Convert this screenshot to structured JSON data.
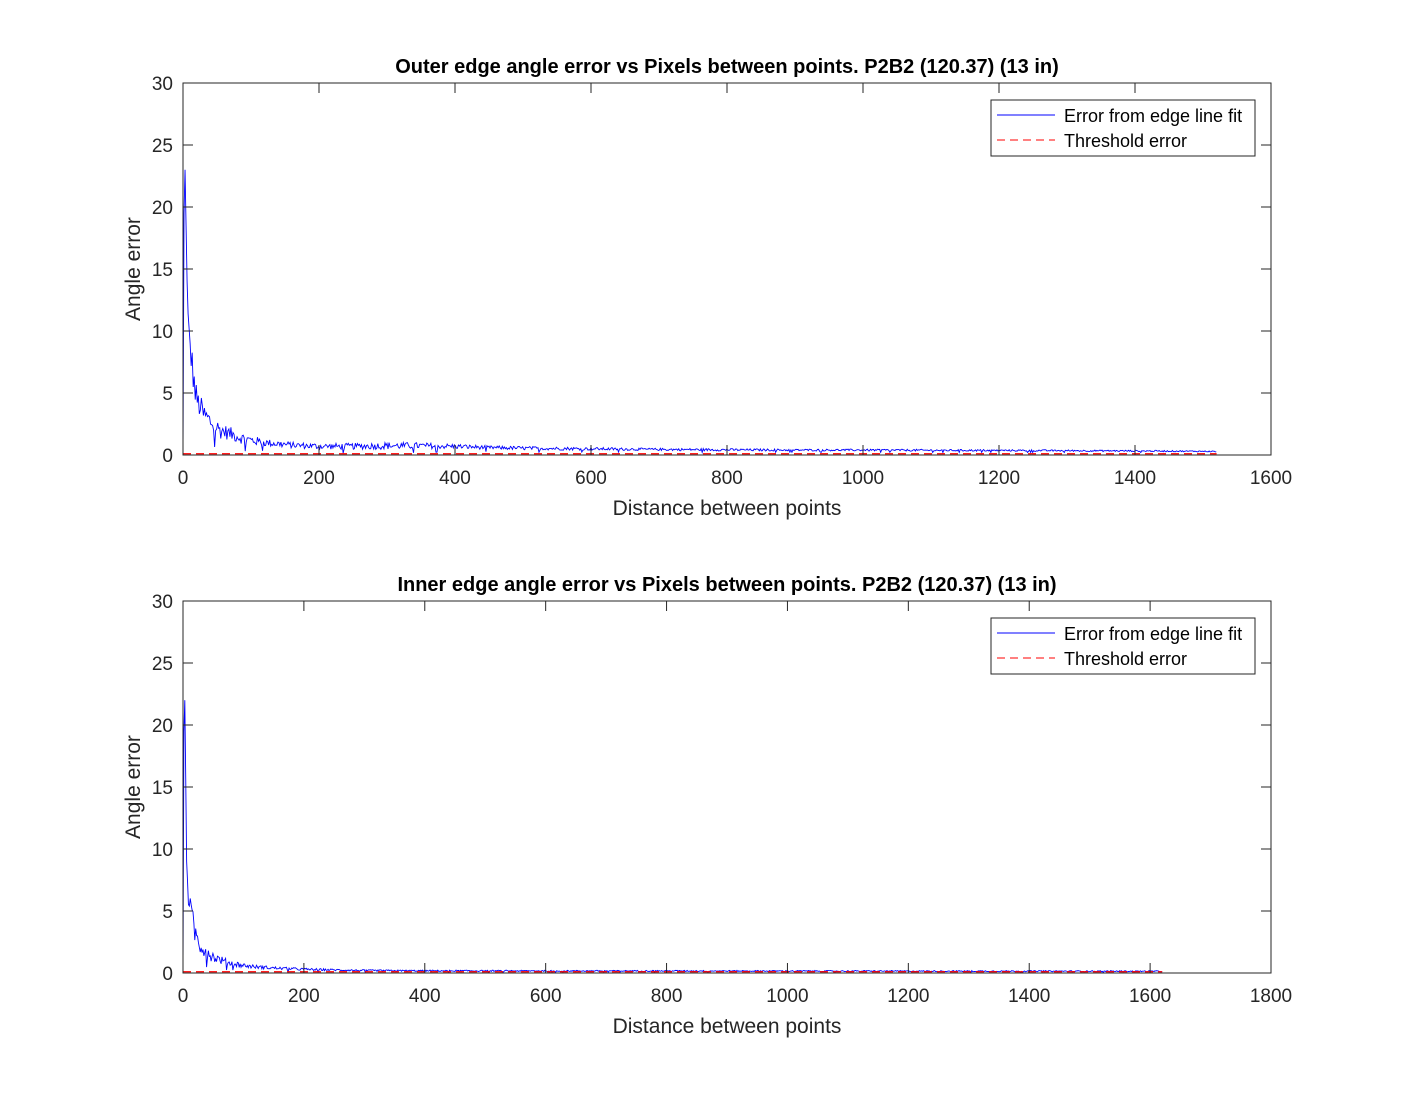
{
  "figure": {
    "background": "#ffffff"
  },
  "chart_data": [
    {
      "type": "line",
      "title": "Outer edge angle error vs Pixels between points. P2B2 (120.37) (13 in)",
      "xlabel": "Distance between points",
      "ylabel": "Angle error",
      "xlim": [
        0,
        1600
      ],
      "ylim": [
        0,
        30
      ],
      "xticks": [
        "0",
        "200",
        "400",
        "600",
        "800",
        "1000",
        "1200",
        "1400",
        "1600"
      ],
      "yticks": [
        "0",
        "5",
        "10",
        "15",
        "20",
        "25",
        "30"
      ],
      "grid": false,
      "legend_position": "top-right",
      "series": [
        {
          "name": "Error from edge line fit",
          "color": "#0000ff",
          "style": "solid",
          "x": [
            0,
            2,
            4,
            6,
            8,
            10,
            12,
            15,
            18,
            22,
            26,
            30,
            35,
            40,
            45,
            50,
            55,
            60,
            70,
            80,
            90,
            100,
            120,
            140,
            160,
            180,
            200,
            250,
            300,
            350,
            400,
            450,
            500,
            600,
            700,
            800,
            900,
            1000,
            1100,
            1200,
            1300,
            1400,
            1500,
            1520
          ],
          "y": [
            0,
            26,
            20,
            14,
            10.5,
            9,
            8,
            6.5,
            5,
            4.2,
            3.8,
            3.3,
            3.0,
            2.7,
            2.4,
            2.2,
            2.0,
            1.9,
            1.7,
            1.5,
            1.3,
            1.2,
            1.0,
            0.9,
            0.8,
            0.75,
            0.7,
            0.7,
            0.75,
            0.75,
            0.7,
            0.6,
            0.55,
            0.5,
            0.45,
            0.42,
            0.4,
            0.4,
            0.38,
            0.37,
            0.35,
            0.33,
            0.3,
            0.28
          ],
          "noise": [
            0,
            0,
            0,
            0,
            0,
            1.5,
            1.4,
            1.3,
            1.2,
            1.0,
            1.0,
            0.9,
            0.9,
            0.8,
            0.8,
            0.7,
            0.7,
            0.6,
            0.55,
            0.5,
            0.45,
            0.4,
            0.3,
            0.3,
            0.25,
            0.25,
            0.25,
            0.25,
            0.3,
            0.25,
            0.2,
            0.15,
            0.15,
            0.12,
            0.1,
            0.1,
            0.08,
            0.08,
            0.08,
            0.07,
            0.07,
            0.06,
            0.05,
            0.05
          ]
        },
        {
          "name": "Threshold error",
          "color": "#ff0000",
          "style": "dashed",
          "x": [
            0,
            1520
          ],
          "y": [
            0.1,
            0.1
          ]
        }
      ]
    },
    {
      "type": "line",
      "title": "Inner edge angle error vs Pixels between points. P2B2 (120.37) (13 in)",
      "xlabel": "Distance between points",
      "ylabel": "Angle error",
      "xlim": [
        0,
        1800
      ],
      "ylim": [
        0,
        30
      ],
      "xticks": [
        "0",
        "200",
        "400",
        "600",
        "800",
        "1000",
        "1200",
        "1400",
        "1600",
        "1800"
      ],
      "yticks": [
        "0",
        "5",
        "10",
        "15",
        "20",
        "25",
        "30"
      ],
      "grid": false,
      "legend_position": "top-right",
      "series": [
        {
          "name": "Error from edge line fit",
          "color": "#0000ff",
          "style": "solid",
          "x": [
            0,
            2,
            4,
            6,
            8,
            10,
            12,
            15,
            18,
            22,
            26,
            30,
            35,
            40,
            45,
            50,
            60,
            70,
            80,
            100,
            120,
            150,
            200,
            250,
            300,
            400,
            600,
            800,
            1000,
            1200,
            1400,
            1600,
            1620
          ],
          "y": [
            0,
            26,
            18,
            9,
            7,
            6,
            5,
            4.5,
            3.5,
            3.0,
            2.5,
            2.2,
            2.0,
            1.8,
            1.5,
            1.3,
            1.1,
            0.9,
            0.8,
            0.6,
            0.5,
            0.4,
            0.3,
            0.25,
            0.2,
            0.18,
            0.17,
            0.17,
            0.16,
            0.15,
            0.15,
            0.14,
            0.14
          ],
          "noise": [
            0,
            0,
            0,
            0,
            1.2,
            1.2,
            1.1,
            1.0,
            1.0,
            0.9,
            0.8,
            0.8,
            0.7,
            0.6,
            0.5,
            0.45,
            0.35,
            0.3,
            0.25,
            0.2,
            0.15,
            0.12,
            0.1,
            0.08,
            0.07,
            0.06,
            0.05,
            0.05,
            0.05,
            0.05,
            0.05,
            0.05,
            0.05
          ]
        },
        {
          "name": "Threshold error",
          "color": "#ff0000",
          "style": "dashed",
          "x": [
            0,
            1620
          ],
          "y": [
            0.1,
            0.1
          ]
        }
      ]
    }
  ]
}
